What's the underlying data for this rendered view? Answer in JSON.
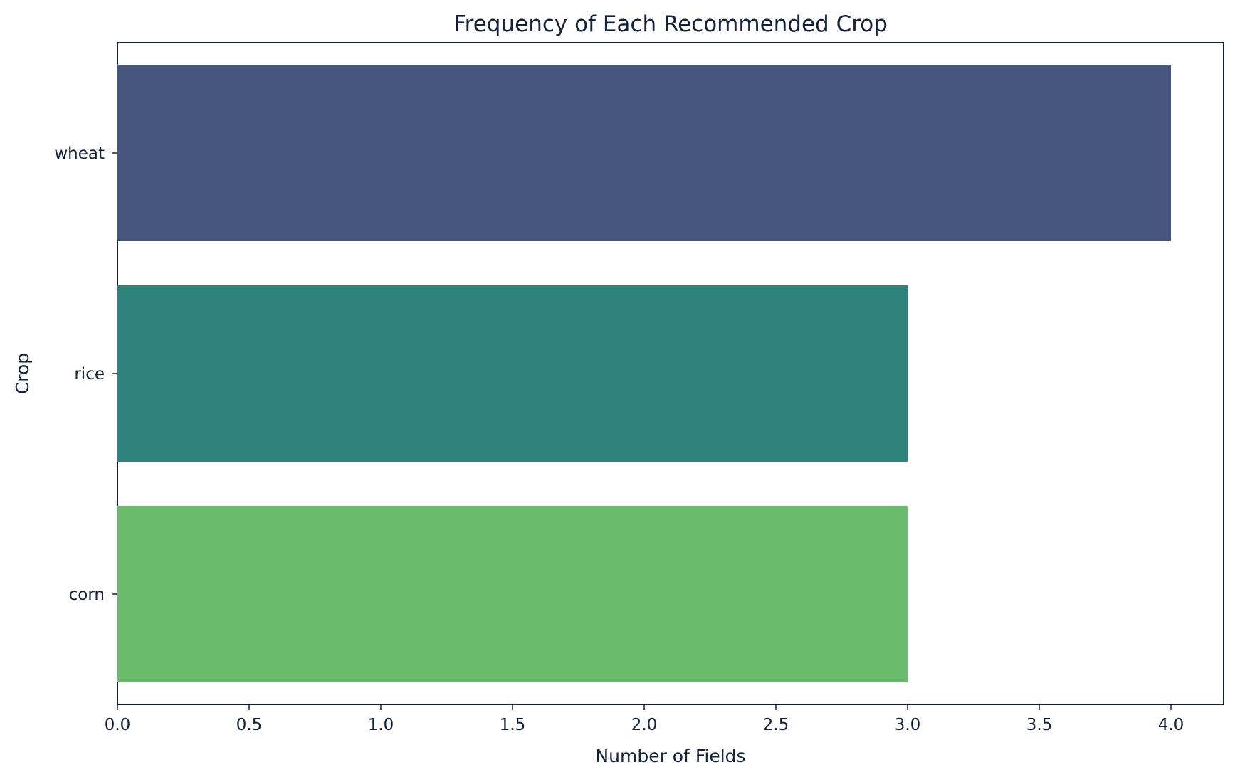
{
  "chart_data": {
    "type": "bar",
    "orientation": "horizontal",
    "title": "Frequency of Each Recommended Crop",
    "xlabel": "Number of Fields",
    "ylabel": "Crop",
    "categories": [
      "wheat",
      "rice",
      "corn"
    ],
    "values": [
      4,
      3,
      3
    ],
    "colors": [
      "#45577f",
      "#2e847d",
      "#6bbb6c"
    ],
    "xlim": [
      0,
      4.2
    ],
    "xticks": [
      0.0,
      0.5,
      1.0,
      1.5,
      2.0,
      2.5,
      3.0,
      3.5,
      4.0
    ],
    "xtick_labels": [
      "0.0",
      "0.5",
      "1.0",
      "1.5",
      "2.0",
      "2.5",
      "3.0",
      "3.5",
      "4.0"
    ],
    "grid": false,
    "axis_color": "#13213a"
  }
}
